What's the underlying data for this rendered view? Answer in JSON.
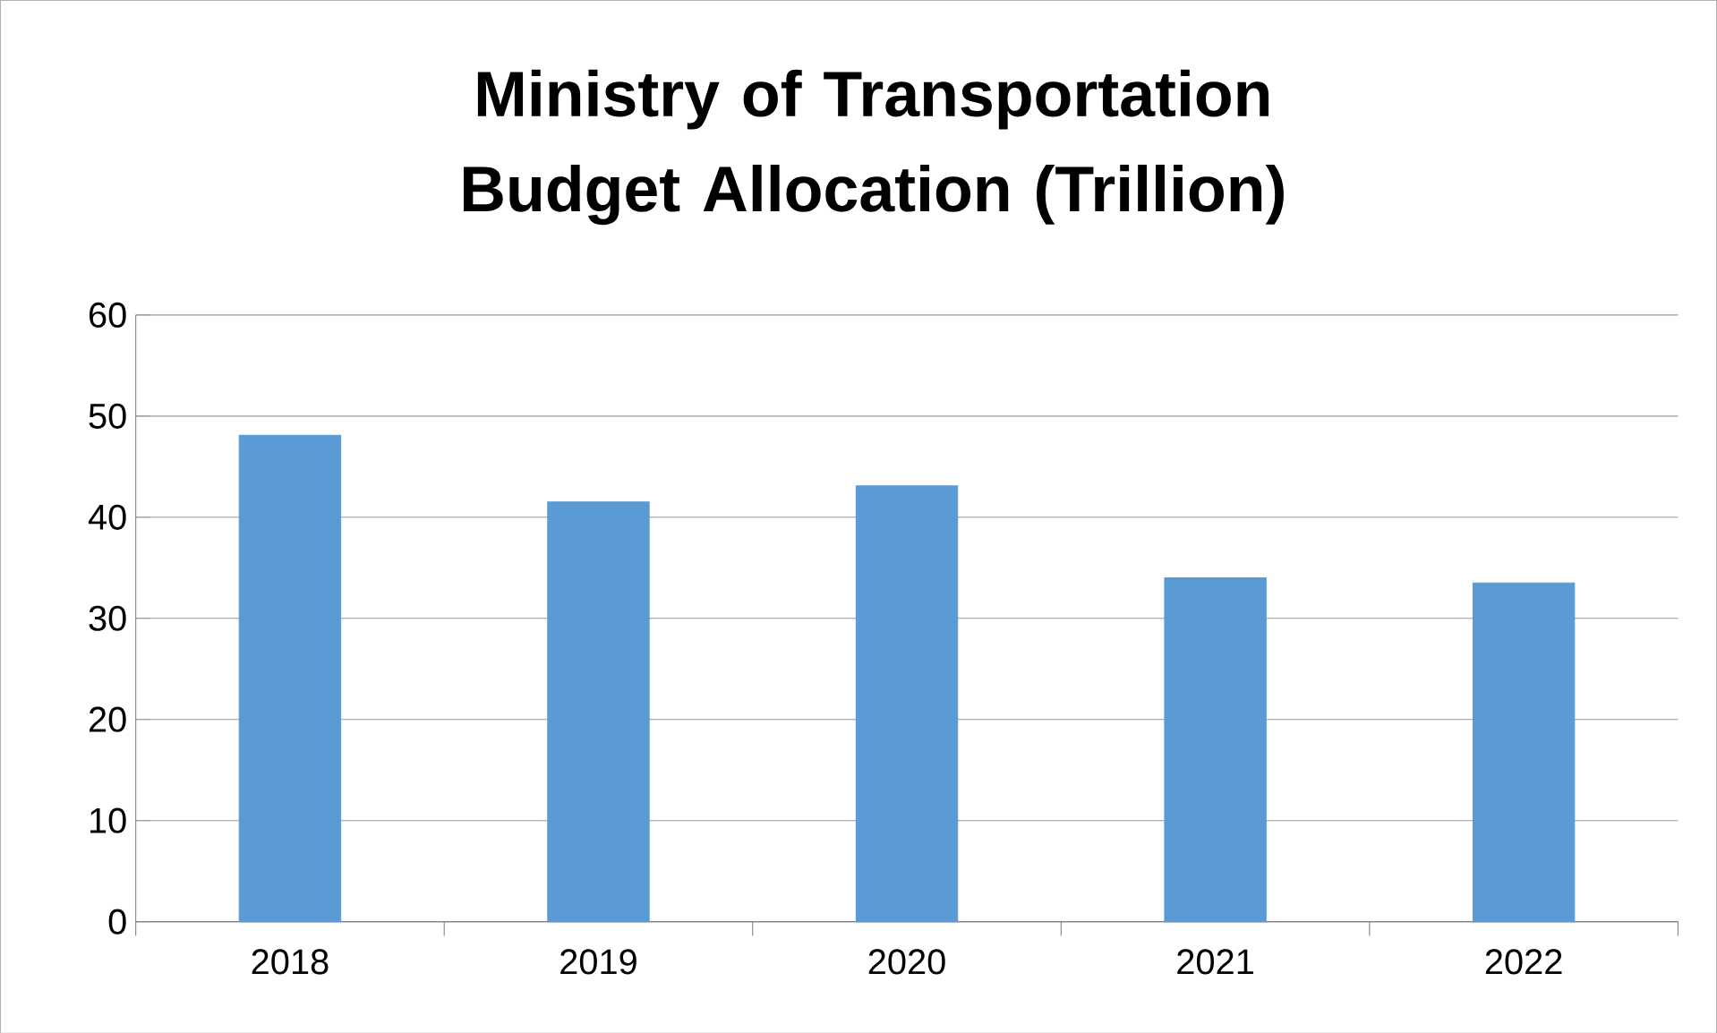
{
  "chart_data": {
    "type": "bar",
    "title": "Ministry of Transportation Budget Allocation (Trillion)",
    "categories": [
      "2018",
      "2019",
      "2020",
      "2021",
      "2022"
    ],
    "values": [
      48.1,
      41.5,
      43.1,
      34,
      33.5
    ],
    "color": "#5b9bd5",
    "ylim": [
      0,
      60
    ],
    "yticks": [
      0,
      10,
      20,
      30,
      40,
      50,
      60
    ],
    "grid": "y"
  }
}
